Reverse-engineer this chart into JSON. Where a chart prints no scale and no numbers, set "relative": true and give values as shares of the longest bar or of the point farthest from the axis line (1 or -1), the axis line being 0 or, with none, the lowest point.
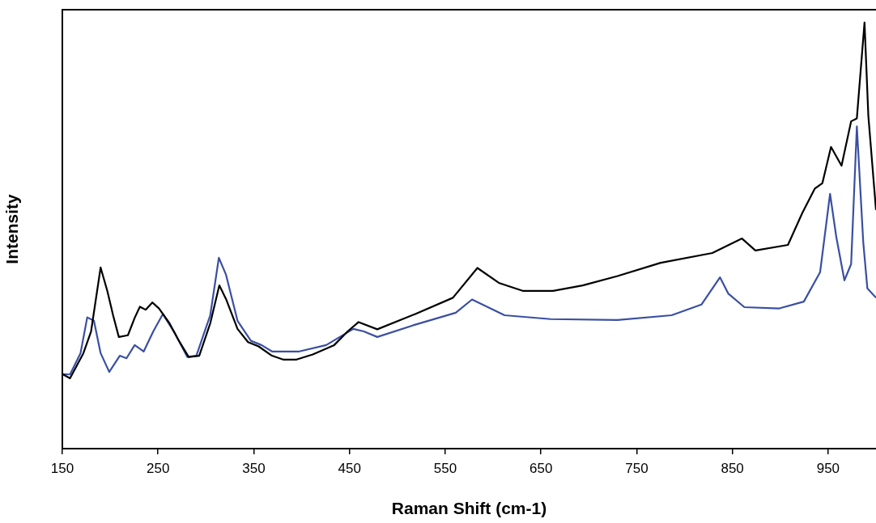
{
  "chart_data": {
    "type": "line",
    "xlabel": "Raman Shift (cm-1)",
    "ylabel": "Intensity",
    "relative": true,
    "xlim": [
      150,
      1000
    ],
    "xticks": [
      150,
      250,
      350,
      450,
      550,
      650,
      750,
      850,
      950
    ],
    "grid": false,
    "legend": false,
    "marker": "none",
    "line_style": "solid",
    "series": [
      {
        "color": "#000000",
        "x": [
          150,
          158,
          172,
          180,
          190,
          197,
          203,
          209,
          218.5,
          225.6,
          231,
          237,
          244,
          251,
          262,
          271,
          282,
          293,
          304.5,
          314,
          321,
          333,
          344,
          355,
          369,
          380.6,
          394.7,
          411.6,
          434,
          448,
          459.5,
          479,
          518.7,
          558,
          583.6,
          606,
          631.5,
          662.5,
          693.5,
          730,
          775,
          829,
          860,
          874,
          908,
          923,
          936,
          944,
          953,
          964,
          974,
          980,
          988,
          992,
          1000
        ],
        "values": [
          0.175,
          0.165,
          0.224,
          0.275,
          0.425,
          0.37,
          0.313,
          0.262,
          0.266,
          0.307,
          0.333,
          0.326,
          0.343,
          0.329,
          0.294,
          0.256,
          0.215,
          0.218,
          0.294,
          0.383,
          0.351,
          0.281,
          0.25,
          0.24,
          0.218,
          0.209,
          0.209,
          0.221,
          0.243,
          0.275,
          0.297,
          0.28,
          0.316,
          0.354,
          0.424,
          0.389,
          0.37,
          0.37,
          0.383,
          0.405,
          0.436,
          0.459,
          0.493,
          0.465,
          0.478,
          0.553,
          0.61,
          0.623,
          0.708,
          0.664,
          0.768,
          0.775,
          1,
          0.781,
          0.56
        ]
      },
      {
        "color": "#3a4fa3",
        "x": [
          150,
          158,
          169,
          176,
          183,
          190,
          199,
          210,
          217,
          225.6,
          235,
          245,
          255,
          268,
          280.6,
          290,
          304.5,
          313.5,
          321,
          333,
          347,
          358,
          369,
          397.5,
          425.7,
          454,
          465,
          479,
          518.7,
          561,
          578,
          612,
          660,
          730,
          786.5,
          817.6,
          837,
          845.6,
          862.5,
          899,
          924.6,
          941.6,
          952,
          958.5,
          967,
          974,
          980,
          986.7,
          991,
          1000
        ],
        "values": [
          0.175,
          0.174,
          0.224,
          0.308,
          0.3,
          0.224,
          0.18,
          0.218,
          0.212,
          0.243,
          0.228,
          0.275,
          0.316,
          0.269,
          0.215,
          0.218,
          0.313,
          0.448,
          0.408,
          0.3,
          0.253,
          0.243,
          0.228,
          0.228,
          0.243,
          0.281,
          0.275,
          0.262,
          0.291,
          0.319,
          0.35,
          0.313,
          0.304,
          0.302,
          0.313,
          0.338,
          0.402,
          0.364,
          0.332,
          0.329,
          0.345,
          0.414,
          0.598,
          0.497,
          0.395,
          0.433,
          0.756,
          0.484,
          0.376,
          0.354
        ]
      }
    ]
  }
}
